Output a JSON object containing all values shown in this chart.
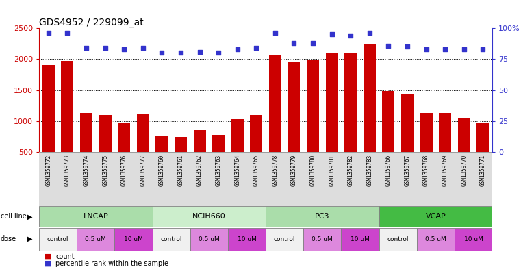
{
  "title": "GDS4952 / 229099_at",
  "samples": [
    "GSM1359772",
    "GSM1359773",
    "GSM1359774",
    "GSM1359775",
    "GSM1359776",
    "GSM1359777",
    "GSM1359760",
    "GSM1359761",
    "GSM1359762",
    "GSM1359763",
    "GSM1359764",
    "GSM1359765",
    "GSM1359778",
    "GSM1359779",
    "GSM1359780",
    "GSM1359781",
    "GSM1359782",
    "GSM1359783",
    "GSM1359766",
    "GSM1359767",
    "GSM1359768",
    "GSM1359769",
    "GSM1359770",
    "GSM1359771"
  ],
  "bar_values": [
    1900,
    1970,
    1130,
    1100,
    975,
    1120,
    750,
    740,
    860,
    775,
    1030,
    1100,
    2060,
    1960,
    1980,
    2100,
    2110,
    2240,
    1490,
    1440,
    1130,
    1130,
    1050,
    960
  ],
  "percentile_values": [
    96,
    96,
    84,
    84,
    83,
    84,
    80,
    80,
    81,
    80,
    83,
    84,
    96,
    88,
    88,
    95,
    94,
    96,
    86,
    85,
    83,
    83,
    83,
    83
  ],
  "bar_color": "#cc0000",
  "dot_color": "#3333cc",
  "ylim_left": [
    500,
    2500
  ],
  "ylim_right": [
    0,
    100
  ],
  "yticks_left": [
    500,
    1000,
    1500,
    2000,
    2500
  ],
  "yticks_right": [
    0,
    25,
    50,
    75,
    100
  ],
  "yticklabels_right": [
    "0",
    "25",
    "50",
    "75",
    "100%"
  ],
  "cell_lines": [
    {
      "name": "LNCAP",
      "start": 0,
      "end": 6,
      "color": "#aaddaa"
    },
    {
      "name": "NCIH660",
      "start": 6,
      "end": 12,
      "color": "#cceecc"
    },
    {
      "name": "PC3",
      "start": 12,
      "end": 18,
      "color": "#aaddaa"
    },
    {
      "name": "VCAP",
      "start": 18,
      "end": 24,
      "color": "#44bb44"
    }
  ],
  "doses": [
    {
      "name": "control",
      "start": 0,
      "end": 2,
      "color": "#f0f0f0"
    },
    {
      "name": "0.5 uM",
      "start": 2,
      "end": 4,
      "color": "#dd88dd"
    },
    {
      "name": "10 uM",
      "start": 4,
      "end": 6,
      "color": "#cc44cc"
    },
    {
      "name": "control",
      "start": 6,
      "end": 8,
      "color": "#f0f0f0"
    },
    {
      "name": "0.5 uM",
      "start": 8,
      "end": 10,
      "color": "#dd88dd"
    },
    {
      "name": "10 uM",
      "start": 10,
      "end": 12,
      "color": "#cc44cc"
    },
    {
      "name": "control",
      "start": 12,
      "end": 14,
      "color": "#f0f0f0"
    },
    {
      "name": "0.5 uM",
      "start": 14,
      "end": 16,
      "color": "#dd88dd"
    },
    {
      "name": "10 uM",
      "start": 16,
      "end": 18,
      "color": "#cc44cc"
    },
    {
      "name": "control",
      "start": 18,
      "end": 20,
      "color": "#f0f0f0"
    },
    {
      "name": "0.5 uM",
      "start": 20,
      "end": 22,
      "color": "#dd88dd"
    },
    {
      "name": "10 uM",
      "start": 22,
      "end": 24,
      "color": "#cc44cc"
    }
  ],
  "legend_count_color": "#cc0000",
  "legend_dot_color": "#3333cc",
  "background_color": "#ffffff",
  "title_fontsize": 10,
  "tick_fontsize": 7,
  "bar_width": 0.65,
  "xlabel_bg": "#dddddd"
}
